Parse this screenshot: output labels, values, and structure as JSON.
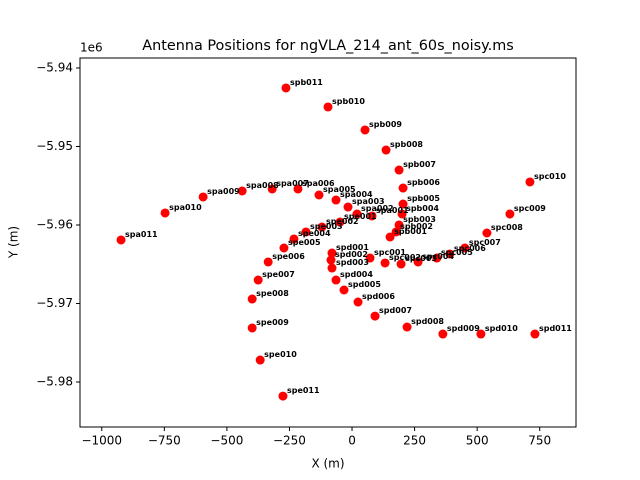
{
  "chart_data": {
    "type": "scatter",
    "title": "Antenna Positions for ngVLA_214_ant_60s_noisy.ms",
    "x_label": "X (m)",
    "y_label": "Y (m)",
    "y_offset_label": "1e6",
    "color": "#ff0000",
    "labels": [
      "spb011",
      "spb010",
      "spb009",
      "spb008",
      "spb007",
      "spb006",
      "spb005",
      "spb004",
      "spb003",
      "spb002",
      "spb001",
      "spa001",
      "spa002",
      "spa003",
      "spa004",
      "spa005",
      "spa006",
      "spa007",
      "spa008",
      "spa009",
      "spa010",
      "spa011",
      "spe001",
      "spe002",
      "spe003",
      "spe004",
      "spe005",
      "spe006",
      "spe007",
      "spe008",
      "spe009",
      "spe010",
      "spe011",
      "spd001",
      "spd002",
      "spd003",
      "spd004",
      "spd005",
      "spd006",
      "spd007",
      "spd008",
      "spd009",
      "spd010",
      "spd011",
      "spc001",
      "spc002",
      "spc003",
      "spc004",
      "spc005",
      "spc006",
      "spc007",
      "spc008",
      "spc009",
      "spc010"
    ],
    "x": [
      -264,
      -96,
      52,
      136,
      188,
      204,
      204,
      200,
      188,
      176,
      152,
      80,
      20,
      -16,
      -64,
      -132,
      -216,
      -319,
      -439,
      -595,
      -747,
      -923,
      -48,
      -120,
      -184,
      -232,
      -272,
      -335,
      -375,
      -399,
      -399,
      -367,
      -276,
      -80,
      -84,
      -80,
      -64,
      -32,
      24,
      92,
      220,
      363,
      515,
      731,
      72,
      132,
      196,
      264,
      339,
      391,
      451,
      539,
      631,
      711
    ],
    "y": [
      -5.94255,
      -5.94497,
      -5.9479,
      -5.95045,
      -5.953,
      -5.95529,
      -5.95733,
      -5.9586,
      -5.96,
      -5.96089,
      -5.96153,
      -5.95885,
      -5.9586,
      -5.95771,
      -5.95682,
      -5.95618,
      -5.95541,
      -5.95541,
      -5.95567,
      -5.95643,
      -5.95847,
      -5.96191,
      -5.95962,
      -5.96026,
      -5.96089,
      -5.96178,
      -5.96293,
      -5.96471,
      -5.96701,
      -5.96943,
      -5.97312,
      -5.9772,
      -5.98179,
      -5.96357,
      -5.96446,
      -5.96548,
      -5.96701,
      -5.96828,
      -5.96981,
      -5.9716,
      -5.973,
      -5.97389,
      -5.97389,
      -5.97389,
      -5.96421,
      -5.96484,
      -5.96497,
      -5.96471,
      -5.96421,
      -5.96369,
      -5.96293,
      -5.96102,
      -5.9586,
      -5.95452
    ],
    "xlim": [
      -1087,
      895
    ],
    "ylim": [
      -5.98573,
      -5.93873
    ],
    "xticks": [
      {
        "value": -1000,
        "label": "−1000"
      },
      {
        "value": -750,
        "label": "−750"
      },
      {
        "value": -500,
        "label": "−500"
      },
      {
        "value": -250,
        "label": "−250"
      },
      0,
      250,
      500,
      750
    ],
    "yticks": [
      {
        "value": -5.98,
        "label": "−5.98"
      },
      {
        "value": -5.97,
        "label": "−5.97"
      },
      {
        "value": -5.96,
        "label": "−5.96"
      },
      {
        "value": -5.95,
        "label": "−5.95"
      },
      {
        "value": -5.94,
        "label": "−5.94"
      }
    ]
  }
}
